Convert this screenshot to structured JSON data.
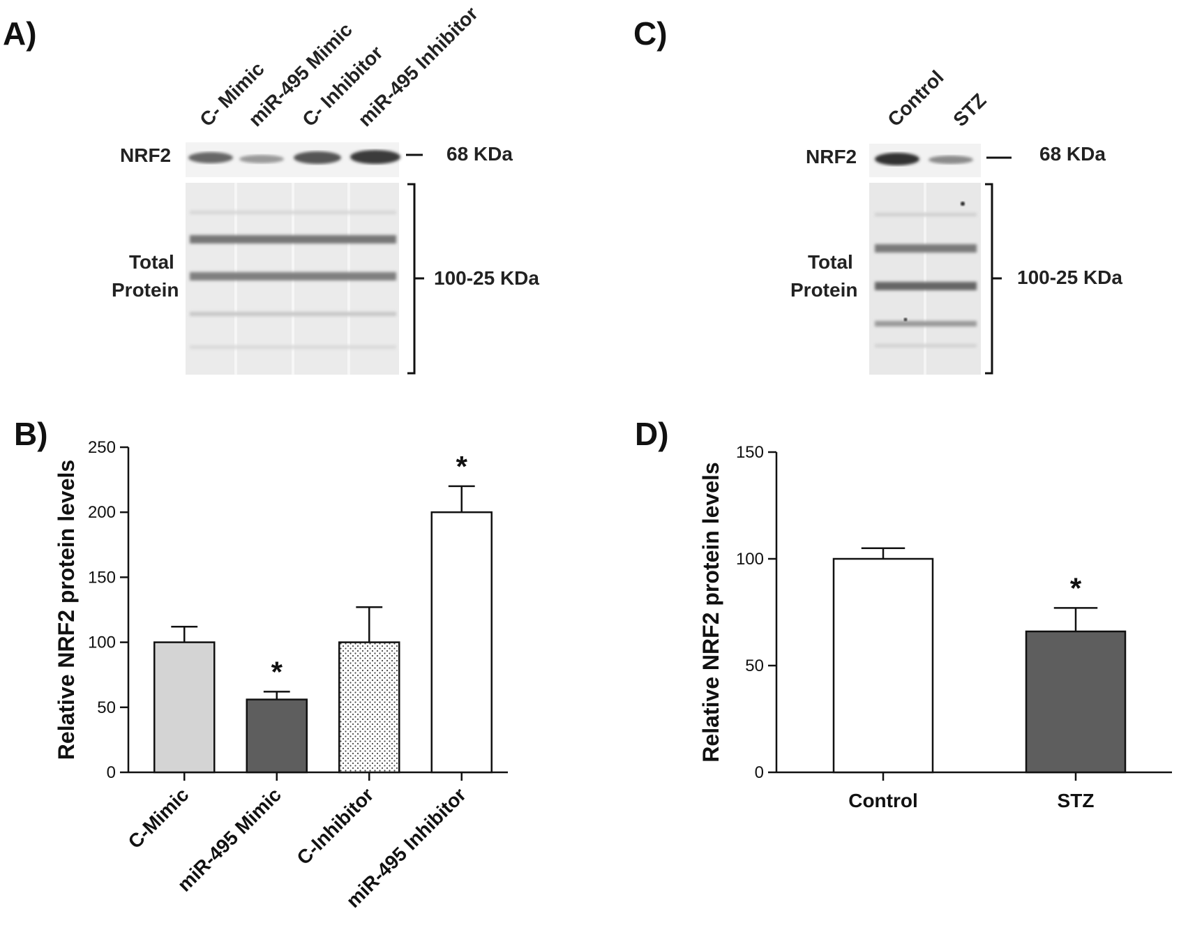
{
  "panels": {
    "A": {
      "label": "A)",
      "lanes": [
        "C- Mimic",
        "miR-495 Mimic",
        "C- Inhibitor",
        "miR-495 Inhibitor"
      ],
      "nrf2_label": "NRF2",
      "nrf2_kda": "68 KDa",
      "total_label_1": "Total",
      "total_label_2": "Protein",
      "total_kda": "100-25 KDa"
    },
    "B": {
      "label": "B)"
    },
    "C": {
      "label": "C)",
      "lanes": [
        "Control",
        "STZ"
      ],
      "nrf2_label": "NRF2",
      "nrf2_kda": "68 KDa",
      "total_label_1": "Total",
      "total_label_2": "Protein",
      "total_kda": "100-25 KDa"
    },
    "D": {
      "label": "D)"
    }
  },
  "chart_data": [
    {
      "type": "bar",
      "panel": "B",
      "categories": [
        "C-Mimic",
        "miR-495 Mimic",
        "C-Inhibitor",
        "miR-495 Inhibitor"
      ],
      "values": [
        100,
        56,
        100,
        200
      ],
      "errors": [
        12,
        6,
        27,
        20
      ],
      "significance": [
        "",
        "*",
        "",
        "*"
      ],
      "fills": [
        "#d4d4d4",
        "#5e5e5e",
        "dots",
        "#ffffff"
      ],
      "ylabel": "Relative NRF2 protein levels",
      "ylim": [
        0,
        250
      ],
      "yticks": [
        0,
        50,
        100,
        150,
        200,
        250
      ],
      "xlabel": "",
      "title": ""
    },
    {
      "type": "bar",
      "panel": "D",
      "categories": [
        "Control",
        "STZ"
      ],
      "values": [
        100,
        66
      ],
      "errors": [
        5,
        11
      ],
      "significance": [
        "",
        "*"
      ],
      "fills": [
        "#ffffff",
        "#5e5e5e"
      ],
      "ylabel": "Relative NRF2 protein levels",
      "ylim": [
        0,
        150
      ],
      "yticks": [
        0,
        50,
        100,
        150
      ],
      "xlabel": "",
      "title": ""
    }
  ]
}
